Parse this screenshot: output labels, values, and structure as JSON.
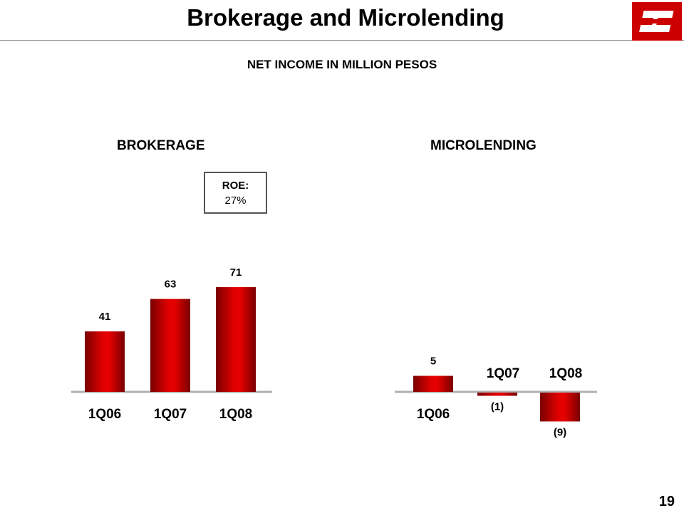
{
  "header": {
    "title": "Brokerage and Microlending",
    "subtitle": "NET INCOME IN MILLION PESOS",
    "logo_icon": "bank-logo-icon",
    "brand_color": "#cc0000"
  },
  "roe": {
    "label": "ROE:",
    "value": "27%"
  },
  "page_number": "19",
  "chart_data": [
    {
      "type": "bar",
      "title": "BROKERAGE",
      "categories": [
        "1Q06",
        "1Q07",
        "1Q08"
      ],
      "values": [
        41,
        63,
        71
      ],
      "value_labels": [
        "41",
        "63",
        "71"
      ],
      "xlabel": "",
      "ylabel": "",
      "grid": false,
      "legend": "none",
      "bar_color": "#cc0000"
    },
    {
      "type": "bar",
      "title": "MICROLENDING",
      "categories": [
        "1Q06",
        "1Q07",
        "1Q08"
      ],
      "values": [
        5,
        -1,
        -9
      ],
      "value_labels": [
        "5",
        "(1)",
        "(9)"
      ],
      "xlabel": "",
      "ylabel": "",
      "grid": false,
      "legend": "none",
      "bar_color": "#cc0000"
    }
  ]
}
